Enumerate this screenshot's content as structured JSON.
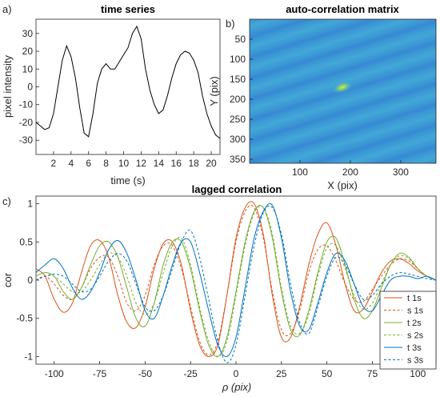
{
  "chart_data": [
    {
      "panel_label": "a)",
      "type": "line",
      "title": "time series",
      "xlabel": "time (s)",
      "ylabel": "pixel intensity",
      "xlim": [
        0,
        21
      ],
      "ylim": [
        -38,
        38
      ],
      "xticks": [
        2,
        4,
        6,
        8,
        10,
        12,
        14,
        16,
        18,
        20
      ],
      "yticks": [
        -30,
        -20,
        -10,
        0,
        10,
        20,
        30
      ],
      "series": [
        {
          "color": "#000000",
          "x": [
            0,
            0.5,
            1,
            1.5,
            2,
            2.5,
            3,
            3.5,
            4,
            4.5,
            5,
            5.5,
            6,
            6.5,
            7,
            7.5,
            8,
            8.5,
            9,
            9.5,
            10,
            10.5,
            11,
            11.5,
            12,
            12.5,
            13,
            13.5,
            14,
            14.5,
            15,
            15.5,
            16,
            16.5,
            17,
            17.5,
            18,
            18.5,
            19,
            19.5,
            20,
            20.5,
            21
          ],
          "values": [
            -20,
            -22,
            -24,
            -23,
            -15,
            0,
            15,
            23,
            17,
            5,
            -12,
            -26,
            -28,
            -15,
            2,
            10,
            13,
            10,
            10,
            14,
            18,
            22,
            30,
            34,
            27,
            10,
            -2,
            -10,
            -15,
            -13,
            -5,
            5,
            13,
            18,
            20,
            19,
            15,
            8,
            -5,
            -15,
            -22,
            -27,
            -29
          ]
        }
      ]
    },
    {
      "panel_label": "b)",
      "type": "heatmap",
      "title": "auto-correlation matrix",
      "xlabel": "X (pix)",
      "ylabel": "Y (pix)",
      "xlim": [
        0,
        370
      ],
      "ylim": [
        360,
        0
      ],
      "xticks": [
        100,
        200,
        300
      ],
      "yticks": [
        50,
        100,
        150,
        200,
        250,
        300,
        350
      ],
      "peak": [
        180,
        180
      ]
    },
    {
      "panel_label": "c)",
      "type": "line",
      "title": "lagged correlation",
      "xlabel": "ρ (pix)",
      "ylabel": "cor",
      "xlim": [
        -110,
        110
      ],
      "ylim": [
        -1.1,
        1.1
      ],
      "xticks": [
        -100,
        -75,
        -50,
        -25,
        0,
        25,
        50,
        75,
        100
      ],
      "yticks": [
        -1,
        -0.5,
        0,
        0.5,
        1
      ],
      "legend_position": "bottom-right",
      "series": [
        {
          "name": "t 1s",
          "color": "#d95319",
          "dash": "solid",
          "x": [
            -110,
            -105,
            -100,
            -95,
            -90,
            -85,
            -80,
            -75,
            -70,
            -65,
            -60,
            -55,
            -50,
            -45,
            -40,
            -35,
            -30,
            -25,
            -20,
            -15,
            -10,
            -5,
            0,
            5,
            10,
            15,
            20,
            25,
            30,
            35,
            40,
            45,
            50,
            55,
            60,
            65,
            70,
            75,
            80,
            85,
            90,
            95,
            100,
            105,
            110
          ],
          "values": [
            0.15,
            0.05,
            -0.25,
            -0.42,
            -0.3,
            0.1,
            0.45,
            0.52,
            0.3,
            -0.2,
            -0.55,
            -0.62,
            -0.35,
            0.15,
            0.48,
            0.5,
            0.2,
            -0.4,
            -0.85,
            -1.0,
            -0.85,
            -0.2,
            0.55,
            0.95,
            1.0,
            0.6,
            -0.2,
            -0.75,
            -0.75,
            -0.35,
            0.2,
            0.6,
            0.75,
            0.45,
            -0.05,
            -0.4,
            -0.38,
            -0.15,
            0.1,
            0.25,
            0.28,
            0.22,
            0.12,
            0.05,
            0.0
          ]
        },
        {
          "name": "s 1s",
          "color": "#d95319",
          "dash": "dashed",
          "x": [
            -110,
            -105,
            -100,
            -95,
            -90,
            -85,
            -80,
            -75,
            -70,
            -65,
            -60,
            -55,
            -50,
            -45,
            -40,
            -35,
            -30,
            -25,
            -20,
            -15,
            -10,
            -5,
            0,
            5,
            10,
            15,
            20,
            25,
            30,
            35,
            40,
            45,
            50,
            55,
            60,
            65,
            70,
            75,
            80,
            85,
            90,
            95,
            100,
            105,
            110
          ],
          "values": [
            0.0,
            0.05,
            -0.05,
            -0.2,
            -0.25,
            -0.1,
            0.15,
            0.3,
            0.3,
            0.05,
            -0.3,
            -0.4,
            -0.2,
            0.2,
            0.45,
            0.45,
            0.15,
            -0.35,
            -0.8,
            -0.98,
            -0.8,
            -0.2,
            0.5,
            0.9,
            0.95,
            0.55,
            -0.15,
            -0.65,
            -0.7,
            -0.4,
            0.1,
            0.4,
            0.45,
            0.25,
            -0.05,
            -0.25,
            -0.28,
            -0.12,
            0.05,
            0.2,
            0.28,
            0.25,
            0.15,
            0.05,
            0.0
          ]
        },
        {
          "name": "t 2s",
          "color": "#77ac30",
          "dash": "solid",
          "x": [
            -110,
            -105,
            -100,
            -95,
            -90,
            -85,
            -80,
            -75,
            -70,
            -65,
            -60,
            -55,
            -50,
            -45,
            -40,
            -35,
            -30,
            -25,
            -20,
            -15,
            -10,
            -5,
            0,
            5,
            10,
            15,
            20,
            25,
            30,
            35,
            40,
            45,
            50,
            55,
            60,
            65,
            70,
            75,
            80,
            85,
            90,
            95,
            100,
            105,
            110
          ],
          "values": [
            0.05,
            0.1,
            0.05,
            -0.15,
            -0.25,
            -0.1,
            0.2,
            0.45,
            0.5,
            0.3,
            -0.1,
            -0.5,
            -0.6,
            -0.3,
            0.2,
            0.5,
            0.5,
            0.15,
            -0.4,
            -0.85,
            -1.0,
            -0.75,
            -0.15,
            0.5,
            0.9,
            0.95,
            0.55,
            -0.15,
            -0.65,
            -0.72,
            -0.4,
            0.1,
            0.5,
            0.55,
            0.2,
            -0.25,
            -0.5,
            -0.4,
            -0.1,
            0.2,
            0.35,
            0.3,
            0.15,
            0.05,
            0.0
          ]
        },
        {
          "name": "s 2s",
          "color": "#77ac30",
          "dash": "dashed",
          "x": [
            -110,
            -105,
            -100,
            -95,
            -90,
            -85,
            -80,
            -75,
            -70,
            -65,
            -60,
            -55,
            -50,
            -45,
            -40,
            -35,
            -30,
            -25,
            -20,
            -15,
            -10,
            -5,
            0,
            5,
            10,
            15,
            20,
            25,
            30,
            35,
            40,
            45,
            50,
            55,
            60,
            65,
            70,
            75,
            80,
            85,
            90,
            95,
            100,
            105,
            110
          ],
          "values": [
            0.0,
            0.05,
            0.05,
            -0.05,
            -0.15,
            -0.15,
            0.0,
            0.2,
            0.35,
            0.3,
            0.05,
            -0.3,
            -0.45,
            -0.3,
            0.1,
            0.45,
            0.55,
            0.2,
            -0.35,
            -0.8,
            -1.0,
            -0.8,
            -0.2,
            0.45,
            0.88,
            0.95,
            0.6,
            -0.1,
            -0.6,
            -0.7,
            -0.45,
            0.05,
            0.42,
            0.45,
            0.15,
            -0.2,
            -0.38,
            -0.3,
            -0.05,
            0.2,
            0.32,
            0.28,
            0.15,
            0.05,
            0.0
          ]
        },
        {
          "name": "t 3s",
          "color": "#0072bd",
          "dash": "solid",
          "x": [
            -110,
            -105,
            -100,
            -95,
            -90,
            -85,
            -80,
            -75,
            -70,
            -65,
            -60,
            -55,
            -50,
            -45,
            -40,
            -35,
            -30,
            -25,
            -20,
            -15,
            -10,
            -5,
            0,
            5,
            10,
            15,
            20,
            25,
            30,
            35,
            40,
            45,
            50,
            55,
            60,
            65,
            70,
            75,
            80,
            85,
            90,
            95,
            100,
            105,
            110
          ],
          "values": [
            0.1,
            0.2,
            0.28,
            0.15,
            -0.1,
            -0.25,
            -0.15,
            0.1,
            0.4,
            0.52,
            0.35,
            0.0,
            -0.4,
            -0.5,
            -0.2,
            0.2,
            0.5,
            0.5,
            0.1,
            -0.4,
            -0.85,
            -1.0,
            -0.75,
            -0.1,
            0.55,
            0.9,
            0.98,
            0.55,
            -0.15,
            -0.6,
            -0.65,
            -0.3,
            0.1,
            0.35,
            0.25,
            -0.05,
            -0.35,
            -0.4,
            -0.2,
            0.0,
            0.05,
            0.05,
            0.02,
            0.05,
            0.0
          ]
        },
        {
          "name": "s 3s",
          "color": "#0072bd",
          "dash": "dashed",
          "x": [
            -110,
            -105,
            -100,
            -95,
            -90,
            -85,
            -80,
            -75,
            -70,
            -65,
            -60,
            -55,
            -50,
            -45,
            -40,
            -35,
            -30,
            -25,
            -20,
            -15,
            -10,
            -5,
            0,
            5,
            10,
            15,
            20,
            25,
            30,
            35,
            40,
            45,
            50,
            55,
            60,
            65,
            70,
            75,
            80,
            85,
            90,
            95,
            100,
            105,
            110
          ],
          "values": [
            0.0,
            0.05,
            0.08,
            0.05,
            -0.05,
            -0.15,
            -0.12,
            0.05,
            0.25,
            0.35,
            0.25,
            -0.05,
            -0.35,
            -0.4,
            -0.2,
            0.15,
            0.5,
            0.65,
            0.3,
            -0.25,
            -0.8,
            -1.08,
            -0.85,
            -0.2,
            0.45,
            0.88,
            0.95,
            0.6,
            -0.05,
            -0.55,
            -0.7,
            -0.35,
            0.05,
            0.3,
            0.2,
            -0.05,
            -0.25,
            -0.2,
            -0.05,
            0.05,
            0.1,
            0.08,
            0.05,
            0.02,
            0.0
          ]
        }
      ]
    }
  ]
}
